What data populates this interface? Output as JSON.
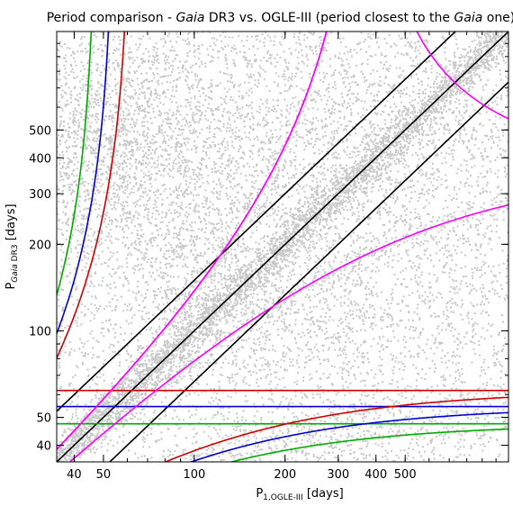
{
  "chart_data": {
    "type": "scatter",
    "title": {
      "prefix": "Period comparison - ",
      "italic": "Gaia",
      "middle": " DR3 vs. OGLE-III (period closest to the ",
      "italic2": "Gaia",
      "suffix": " one)"
    },
    "xlabel": {
      "main": "P",
      "sub": "1,OGLE-III",
      "unit": " [days]"
    },
    "ylabel": {
      "main": "P",
      "sub_italic": "Gaia",
      "sub": " DR3",
      "unit": " [days]"
    },
    "x_scale": "log",
    "y_scale": "log",
    "xlim": [
      35,
      1100
    ],
    "ylim": [
      35,
      1100
    ],
    "x_ticks": [
      40,
      50,
      100,
      200,
      300,
      400,
      500
    ],
    "y_ticks": [
      40,
      50,
      100,
      200,
      300,
      400,
      500
    ],
    "grid": false,
    "legend": "none",
    "point_color": "#c8c8c8",
    "series": [
      {
        "kind": "diagonal",
        "ratio": 1,
        "color": "#000000"
      },
      {
        "kind": "diagonal",
        "ratio": 1.5,
        "color": "#000000"
      },
      {
        "kind": "diagonal",
        "ratio": 0.6667,
        "color": "#000000"
      },
      {
        "kind": "horizontal",
        "y": 62.0,
        "color": "#cc0000"
      },
      {
        "kind": "horizontal",
        "y": 54.5,
        "color": "#0000cc"
      },
      {
        "kind": "horizontal",
        "y": 47.5,
        "color": "#00aa00"
      },
      {
        "kind": "alias_plus",
        "period_days": 62.0,
        "color": "#cc0000"
      },
      {
        "kind": "alias_plus",
        "period_days": 54.5,
        "color": "#0000cc"
      },
      {
        "kind": "alias_plus",
        "period_days": 47.5,
        "color": "#00aa00"
      },
      {
        "kind": "alias_minus",
        "period_days": 365.25,
        "color": "#ff00ff"
      },
      {
        "kind": "alias_plus",
        "period_days": 365.25,
        "color": "#ff00ff"
      }
    ],
    "density_clouds": [
      {
        "x": 52,
        "y": 450,
        "sx": 0.5,
        "sy": 0.4,
        "n": 1800
      },
      {
        "x": 120,
        "y": 140,
        "sx": 0.25,
        "sy": 0.3,
        "n": 400
      },
      {
        "x": 200,
        "y": 200,
        "sx": 0.9,
        "sy": 0.9,
        "n": 2800
      },
      {
        "x": 500,
        "y": 500,
        "sx": 0.8,
        "sy": 0.8,
        "n": 1400
      }
    ],
    "diagonal_band": {
      "n": 3500,
      "from": 35,
      "to": 1100,
      "scatter": 0.04
    },
    "aliases_points": {
      "n": 900
    }
  }
}
